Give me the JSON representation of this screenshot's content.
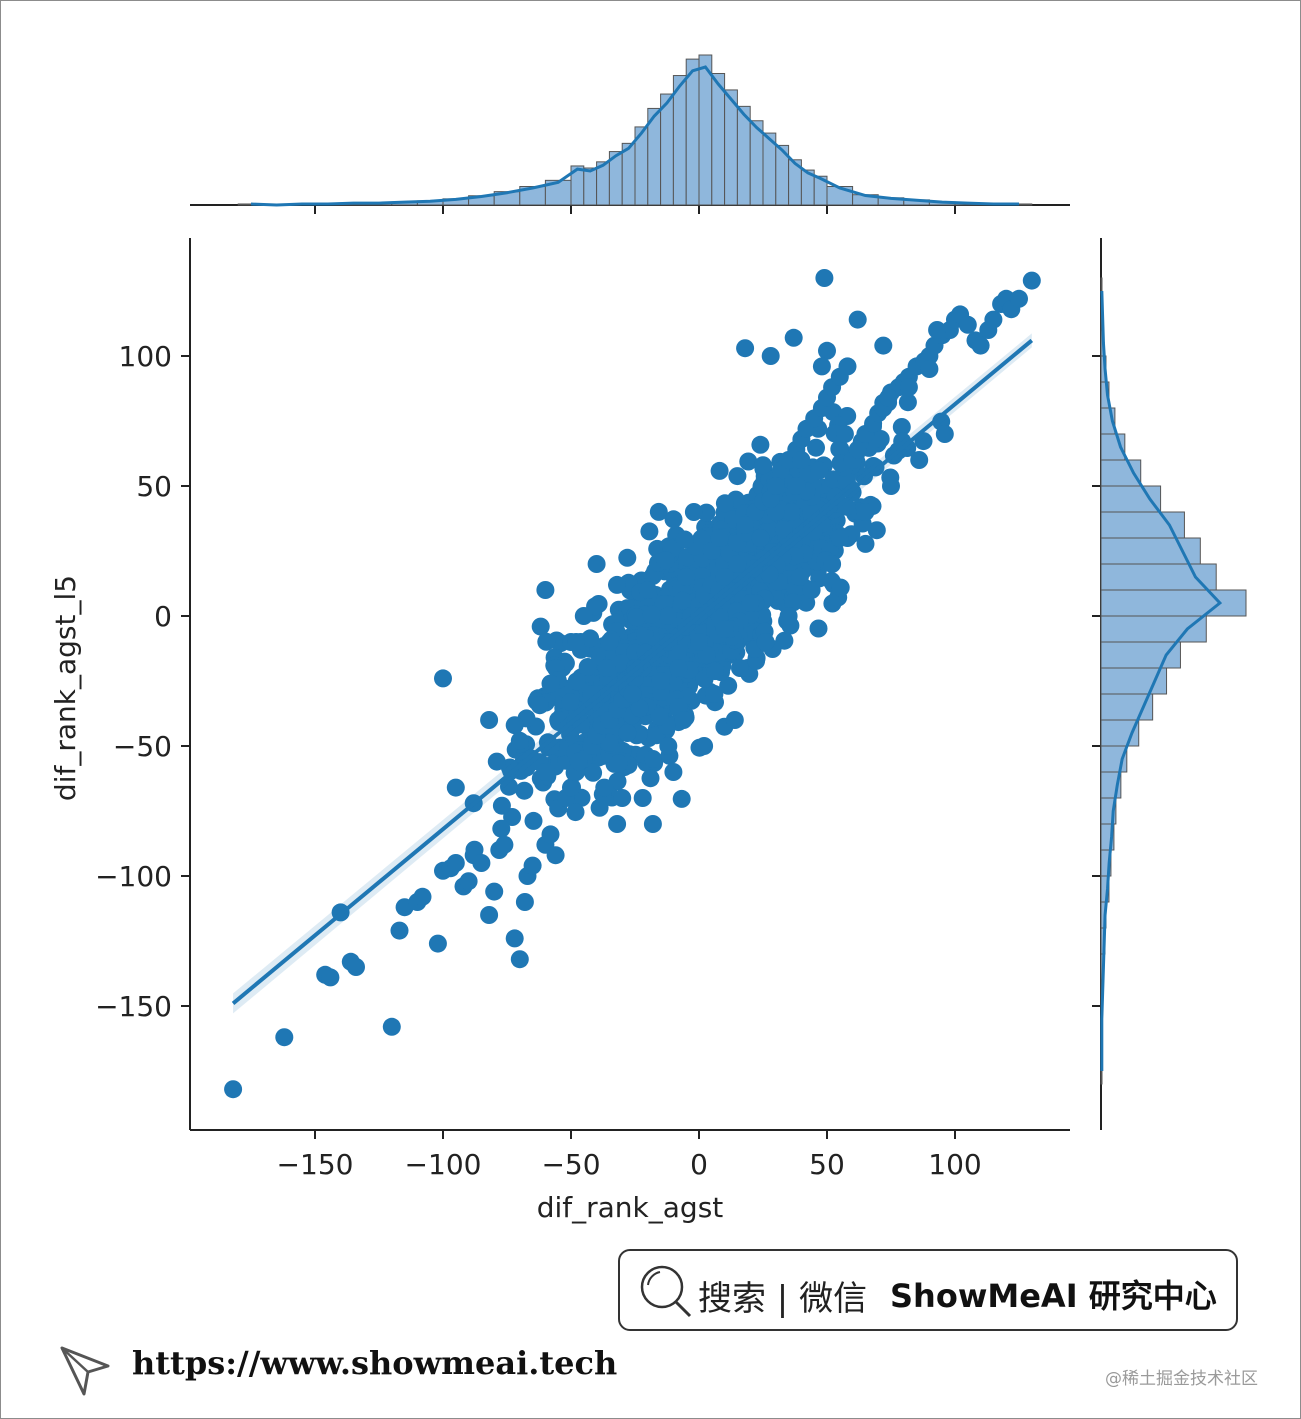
{
  "chart_data": {
    "type": "scatter",
    "subtype": "jointplot with regression line and marginal histograms",
    "xlabel": "dif_rank_agst",
    "ylabel": "dif_rank_agst_l5",
    "xlim": [
      -198,
      145
    ],
    "ylim": [
      -196,
      145
    ],
    "xticks": [
      -150,
      -100,
      -50,
      0,
      50,
      100
    ],
    "yticks": [
      -150,
      -100,
      -50,
      0,
      50,
      100
    ],
    "xtick_labels": [
      "−150",
      "−100",
      "−50",
      "0",
      "50",
      "100"
    ],
    "ytick_labels": [
      "−150",
      "−100",
      "−50",
      "0",
      "50",
      "100"
    ],
    "regression": {
      "x": [
        -182,
        130
      ],
      "y": [
        -149,
        106
      ]
    },
    "points": {
      "x": [
        -182,
        -162,
        -146,
        -144,
        -136,
        -134,
        -140,
        -120,
        -117,
        -115,
        -110,
        -108,
        -102,
        -100,
        -97,
        -95,
        -92,
        -90,
        -88,
        -85,
        -82,
        -80,
        -78,
        -76,
        -72,
        -70,
        -68,
        -67,
        -100,
        -65,
        -60,
        -58,
        -56,
        -55,
        -52,
        -50,
        -48,
        -45,
        -42,
        -40,
        -38,
        -35,
        -32,
        -30,
        -28,
        -25,
        -20,
        -18,
        -15,
        -10,
        -5,
        -3,
        0,
        2,
        5,
        8,
        10,
        12,
        15,
        18,
        20,
        22,
        25,
        28,
        30,
        32,
        35,
        38,
        40,
        42,
        45,
        48,
        50,
        52,
        55,
        58,
        60,
        62,
        65,
        68,
        70,
        72,
        75,
        78,
        80,
        82,
        85,
        88,
        90,
        92,
        95,
        98,
        100,
        102,
        105,
        108,
        110,
        113,
        115,
        118,
        120,
        122,
        125,
        130,
        49,
        50,
        37,
        18,
        28,
        48,
        62,
        72,
        82,
        93,
        90,
        72,
        74,
        57,
        47,
        42,
        36,
        25,
        -37,
        -18,
        -30,
        -47,
        -60,
        -72,
        -95,
        -88,
        -79,
        -70,
        -82,
        -58,
        -50,
        -38,
        -22,
        -12,
        0,
        8,
        15,
        24,
        30,
        -40,
        -20,
        -5,
        5,
        18,
        28,
        38,
        -60,
        -45,
        -35,
        -25,
        -15,
        -8,
        3,
        12,
        22,
        -55,
        -42,
        -28,
        -18,
        -6,
        6,
        16,
        26,
        35,
        44,
        52,
        58,
        -10,
        2,
        14,
        -32,
        -22,
        10,
        20,
        8,
        -2,
        -12,
        -26,
        -36,
        -48,
        30,
        40,
        55,
        65,
        75,
        86,
        96,
        -8,
        0,
        10
      ],
      "y": [
        -182,
        -162,
        -138,
        -139,
        -133,
        -135,
        -114,
        -158,
        -121,
        -112,
        -110,
        -108,
        -126,
        -98,
        -97,
        -95,
        -104,
        -102,
        -92,
        -95,
        -115,
        -106,
        -90,
        -88,
        -124,
        -132,
        -110,
        -100,
        -24,
        -96,
        -88,
        -84,
        -92,
        -74,
        -70,
        -66,
        -60,
        -55,
        -50,
        -46,
        -42,
        -40,
        -36,
        -32,
        -28,
        -24,
        -20,
        -16,
        -12,
        -8,
        -4,
        0,
        4,
        8,
        12,
        16,
        20,
        24,
        28,
        32,
        36,
        40,
        44,
        48,
        52,
        56,
        60,
        64,
        68,
        72,
        76,
        80,
        84,
        88,
        92,
        96,
        60,
        64,
        70,
        74,
        78,
        82,
        86,
        88,
        90,
        92,
        96,
        98,
        100,
        104,
        108,
        110,
        114,
        116,
        112,
        106,
        104,
        110,
        114,
        120,
        122,
        118,
        122,
        129,
        130,
        102,
        107,
        103,
        100,
        96,
        114,
        104,
        88,
        110,
        95,
        80,
        84,
        70,
        56,
        48,
        40,
        58,
        -66,
        -80,
        -70,
        -56,
        -60,
        -42,
        -66,
        -72,
        -56,
        -48,
        -40,
        -26,
        -10,
        -30,
        -20,
        -10,
        0,
        10,
        20,
        30,
        40,
        20,
        10,
        15,
        25,
        35,
        45,
        50,
        10,
        0,
        -10,
        -20,
        -25,
        -35,
        -15,
        -5,
        5,
        -40,
        -30,
        -45,
        -55,
        -40,
        -30,
        -20,
        -10,
        0,
        10,
        20,
        30,
        -60,
        -50,
        -40,
        -80,
        -70,
        -5,
        5,
        30,
        40,
        -50,
        -30,
        -20,
        -10,
        50,
        60,
        30,
        40,
        50,
        60,
        70,
        -20,
        -10,
        15
      ]
    },
    "points_cloud": {
      "center": [
        0,
        0
      ],
      "note": "dense core"
    },
    "x_hist": {
      "bins": [
        -180,
        -170,
        -160,
        -150,
        -140,
        -130,
        -120,
        -110,
        -100,
        -90,
        -80,
        -70,
        -60,
        -50,
        -45,
        -40,
        -35,
        -30,
        -25,
        -20,
        -15,
        -10,
        -5,
        0,
        5,
        10,
        15,
        20,
        25,
        30,
        35,
        40,
        45,
        50,
        60,
        70,
        80,
        90,
        100,
        110,
        120,
        130
      ],
      "counts": [
        1,
        0,
        1,
        1,
        2,
        2,
        3,
        4,
        6,
        9,
        13,
        18,
        24,
        38,
        36,
        42,
        52,
        60,
        76,
        94,
        108,
        126,
        142,
        146,
        128,
        112,
        96,
        82,
        70,
        58,
        44,
        34,
        28,
        18,
        10,
        7,
        5,
        3,
        2,
        1,
        1
      ]
    },
    "y_hist": {
      "bins": [
        -180,
        -170,
        -160,
        -150,
        -140,
        -130,
        -120,
        -110,
        -100,
        -90,
        -80,
        -70,
        -60,
        -50,
        -40,
        -30,
        -20,
        -10,
        0,
        10,
        20,
        30,
        40,
        50,
        60,
        70,
        80,
        90,
        100,
        110,
        120,
        130
      ],
      "counts": [
        1,
        1,
        1,
        2,
        3,
        4,
        5,
        8,
        10,
        13,
        15,
        20,
        26,
        38,
        52,
        66,
        80,
        106,
        146,
        116,
        100,
        84,
        60,
        40,
        24,
        14,
        8,
        5,
        3,
        2,
        1
      ]
    },
    "color": "#1f77b4",
    "hist_fill": "#8fb7dc"
  },
  "badge": {
    "search_label": "搜索 | 微信",
    "brand_label": "ShowMeAI 研究中心"
  },
  "footer": {
    "url": "https://www.showmeai.tech",
    "watermark": "@稀土掘金技术社区"
  }
}
